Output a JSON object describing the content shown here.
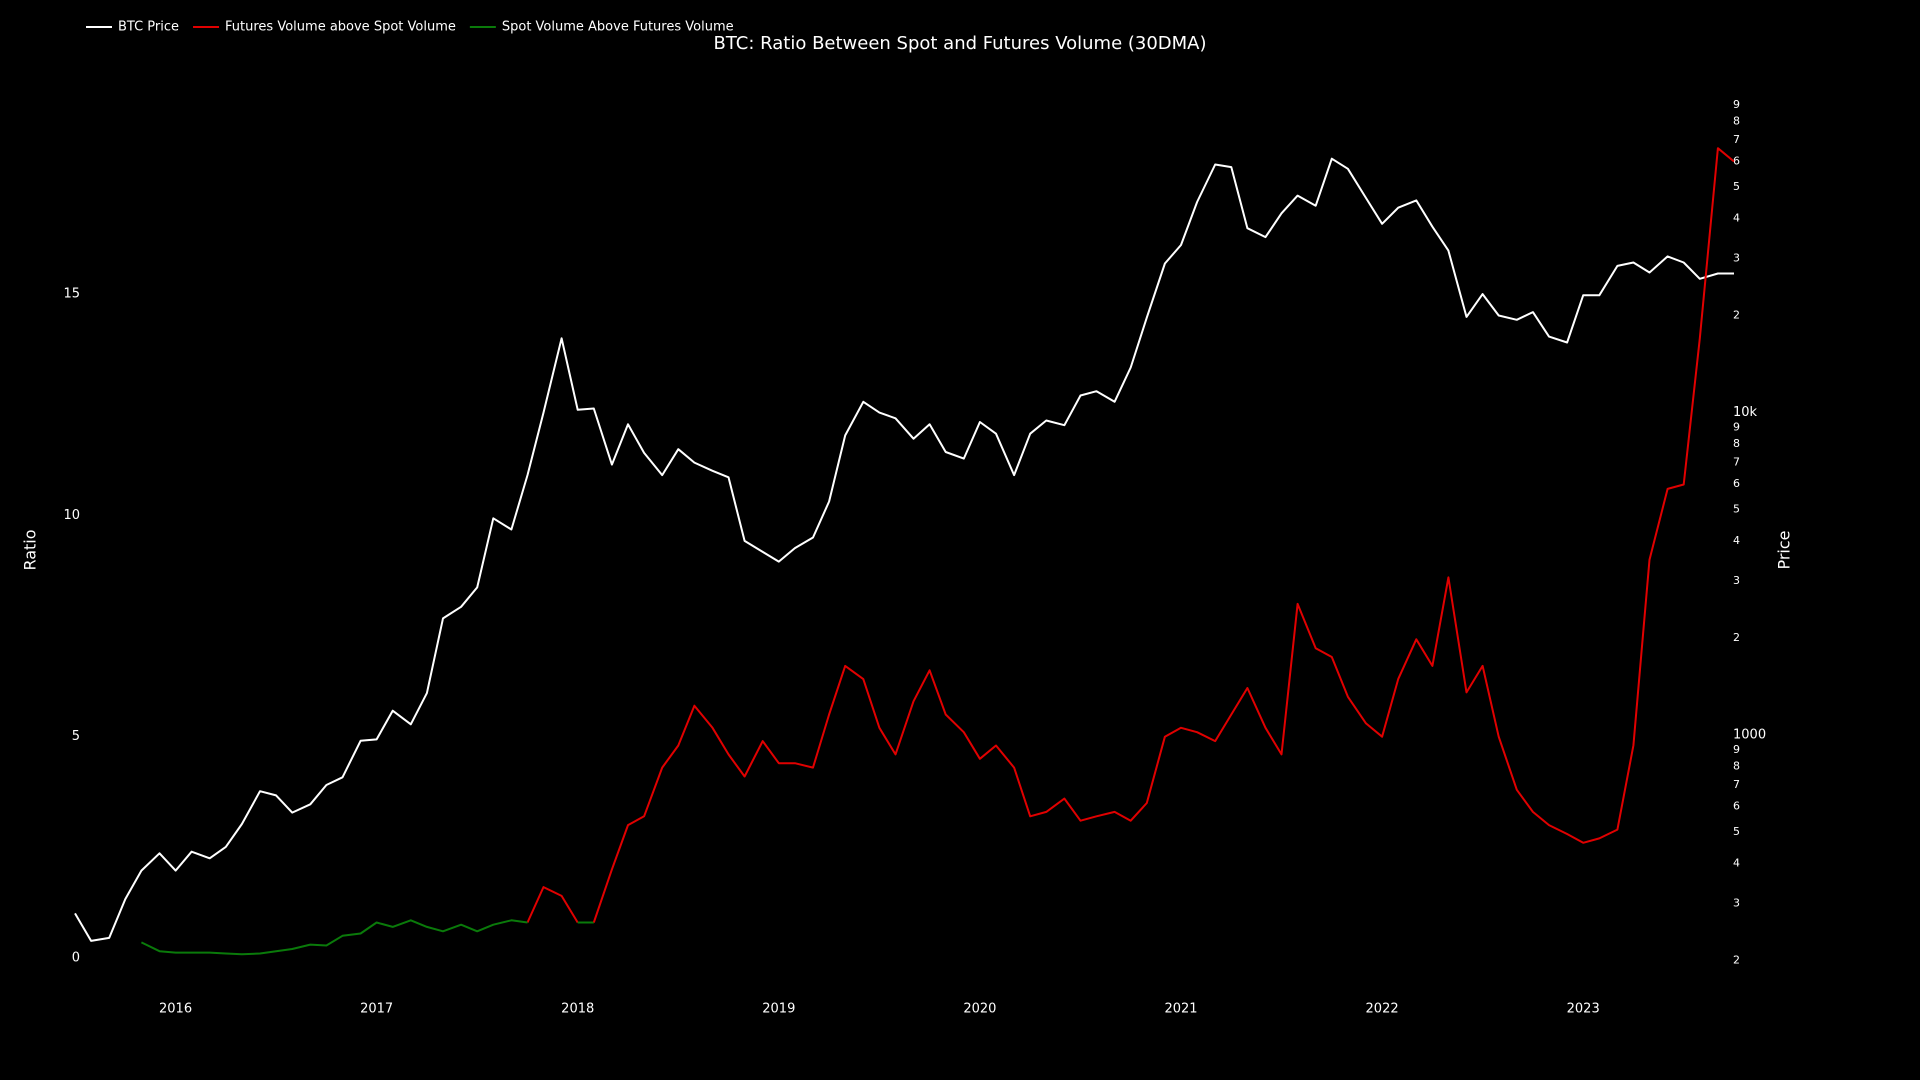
{
  "chart_data": {
    "type": "line",
    "title": "BTC: Ratio Between Spot and Futures Volume (30DMA)",
    "y_label": "Ratio",
    "y2_label": "Price",
    "x": [
      2015.5,
      2015.58,
      2015.67,
      2015.75,
      2015.83,
      2015.92,
      2016.0,
      2016.08,
      2016.17,
      2016.25,
      2016.33,
      2016.42,
      2016.5,
      2016.58,
      2016.67,
      2016.75,
      2016.83,
      2016.92,
      2017.0,
      2017.08,
      2017.17,
      2017.25,
      2017.33,
      2017.42,
      2017.5,
      2017.58,
      2017.67,
      2017.75,
      2017.83,
      2017.92,
      2018.0,
      2018.08,
      2018.17,
      2018.25,
      2018.33,
      2018.42,
      2018.5,
      2018.58,
      2018.67,
      2018.75,
      2018.83,
      2018.92,
      2019.0,
      2019.08,
      2019.17,
      2019.25,
      2019.33,
      2019.42,
      2019.5,
      2019.58,
      2019.67,
      2019.75,
      2019.83,
      2019.92,
      2020.0,
      2020.08,
      2020.17,
      2020.25,
      2020.33,
      2020.42,
      2020.5,
      2020.58,
      2020.67,
      2020.75,
      2020.83,
      2020.92,
      2021.0,
      2021.08,
      2021.17,
      2021.25,
      2021.33,
      2021.42,
      2021.5,
      2021.58,
      2021.67,
      2021.75,
      2021.83,
      2021.92,
      2022.0,
      2022.08,
      2022.17,
      2022.25,
      2022.33,
      2022.42,
      2022.5,
      2022.58,
      2022.67,
      2022.75,
      2022.83,
      2022.92,
      2023.0,
      2023.08,
      2023.17,
      2023.25,
      2023.33,
      2023.42,
      2023.5,
      2023.58,
      2023.67,
      2023.75
    ],
    "series": [
      {
        "name": "BTC Price",
        "color": "#ffffff",
        "axis": "y2",
        "values": [
          280,
          230,
          235,
          310,
          380,
          430,
          380,
          435,
          415,
          450,
          530,
          670,
          650,
          575,
          610,
          700,
          740,
          960,
          970,
          1190,
          1080,
          1350,
          2300,
          2500,
          2870,
          4700,
          4340,
          6400,
          10000,
          17000,
          10200,
          10300,
          6900,
          9200,
          7500,
          6400,
          7700,
          7000,
          6600,
          6300,
          4000,
          3700,
          3450,
          3800,
          4100,
          5300,
          8500,
          10800,
          10000,
          9600,
          8300,
          9200,
          7550,
          7200,
          9350,
          8600,
          6400,
          8600,
          9450,
          9140,
          11300,
          11650,
          10800,
          13800,
          19700,
          29000,
          33100,
          45000,
          58800,
          57700,
          37300,
          35000,
          41500,
          47100,
          43800,
          61300,
          57000,
          46300,
          38500,
          43200,
          45500,
          37700,
          31800,
          19800,
          23300,
          20000,
          19400,
          20500,
          17200,
          16500,
          23100,
          23100,
          28500,
          29200,
          27200,
          30500,
          29200,
          26000,
          27000,
          27000
        ]
      },
      {
        "name": "Futures Volume above Spot Volume",
        "color": "#e00000",
        "values": [
          null,
          null,
          null,
          null,
          null,
          null,
          null,
          null,
          null,
          null,
          null,
          null,
          null,
          null,
          null,
          null,
          null,
          null,
          null,
          null,
          null,
          null,
          null,
          null,
          null,
          null,
          null,
          0.8,
          1.6,
          1.4,
          0.8,
          null,
          null,
          null,
          null,
          null,
          null,
          null,
          null,
          null,
          null,
          null,
          null,
          null,
          null,
          null,
          null,
          null,
          null,
          null,
          null,
          null,
          null,
          null,
          null,
          null,
          null,
          null,
          null,
          null,
          null,
          null,
          null,
          null,
          null,
          null,
          null,
          null,
          null,
          null,
          null,
          null,
          null,
          null,
          null,
          null,
          null,
          null,
          null,
          null,
          null,
          null,
          null,
          null,
          null,
          null,
          null,
          null,
          null,
          null,
          null,
          null,
          null,
          null,
          null,
          null,
          null,
          null,
          null,
          null
        ]
      },
      {
        "name": "Spot Volume Above Futures Volume",
        "color": "#0a7a0a",
        "values": [
          null,
          null,
          null,
          null,
          0.35,
          0.15,
          0.12,
          0.12,
          0.12,
          0.1,
          0.08,
          0.1,
          0.15,
          0.2,
          0.3,
          0.28,
          0.5,
          0.55,
          0.8,
          0.7,
          0.85,
          0.7,
          0.6,
          0.75,
          0.6,
          0.75,
          0.85,
          0.8,
          null,
          null,
          0.8,
          0.8,
          null,
          null,
          null,
          null,
          null,
          null,
          null,
          null,
          null,
          null,
          null,
          null,
          null,
          null,
          null,
          null,
          null,
          null,
          null,
          null,
          null,
          null,
          null,
          null,
          null,
          null,
          null,
          null,
          null,
          null,
          null,
          null,
          null,
          null,
          null,
          null,
          null,
          null,
          null,
          null,
          null,
          null,
          null,
          null,
          null,
          null,
          null,
          null,
          null,
          null,
          null,
          null,
          null,
          null,
          null,
          null,
          null,
          null,
          null,
          null,
          null,
          null,
          null,
          null,
          null,
          null,
          null,
          null
        ]
      }
    ],
    "ratio_futures_continued": [
      null,
      null,
      null,
      null,
      null,
      null,
      null,
      null,
      null,
      null,
      null,
      null,
      null,
      null,
      null,
      null,
      null,
      null,
      null,
      null,
      null,
      null,
      null,
      null,
      null,
      null,
      null,
      null,
      null,
      null,
      null,
      0.8,
      2.0,
      3.0,
      3.2,
      4.3,
      4.8,
      5.7,
      5.2,
      4.6,
      4.1,
      4.9,
      4.4,
      4.4,
      4.3,
      5.5,
      6.6,
      6.3,
      5.2,
      4.6,
      5.8,
      6.5,
      5.5,
      5.1,
      4.5,
      4.8,
      4.3,
      3.2,
      3.3,
      3.6,
      3.1,
      3.2,
      3.3,
      3.1,
      3.5,
      5.0,
      5.2,
      5.1,
      4.9,
      5.5,
      6.1,
      5.2,
      4.6,
      8.0,
      7.0,
      6.8,
      5.9,
      5.3,
      5.0,
      6.3,
      7.2,
      6.6,
      8.6,
      6.0,
      6.6,
      5.0,
      3.8,
      3.3,
      3.0,
      2.8,
      2.6,
      2.7,
      2.9,
      4.8,
      9.0,
      10.6,
      10.7,
      14.0,
      18.3,
      18.0
    ],
    "xlim": [
      2015.49,
      2023.76
    ],
    "xticks": [
      2016,
      2017,
      2018,
      2019,
      2020,
      2021,
      2022,
      2023
    ],
    "ylim": [
      -0.5,
      20
    ],
    "yticks": [
      0,
      5,
      10,
      15
    ],
    "y2lim": [
      174,
      113000
    ],
    "y2_log": true,
    "y2ticks": [
      {
        "value": 200,
        "label": "2"
      },
      {
        "value": 300,
        "label": "3"
      },
      {
        "value": 400,
        "label": "4"
      },
      {
        "value": 500,
        "label": "5"
      },
      {
        "value": 600,
        "label": "6"
      },
      {
        "value": 700,
        "label": "7"
      },
      {
        "value": 800,
        "label": "8"
      },
      {
        "value": 900,
        "label": "9"
      },
      1000,
      {
        "value": 2000,
        "label": "2"
      },
      {
        "value": 3000,
        "label": "3"
      },
      {
        "value": 4000,
        "label": "4"
      },
      {
        "value": 5000,
        "label": "5"
      },
      {
        "value": 6000,
        "label": "6"
      },
      {
        "value": 7000,
        "label": "7"
      },
      {
        "value": 8000,
        "label": "8"
      },
      {
        "value": 9000,
        "label": "9"
      },
      {
        "value": 10000,
        "label": "10k"
      },
      {
        "value": 20000,
        "label": "2"
      },
      {
        "value": 30000,
        "label": "3"
      },
      {
        "value": 40000,
        "label": "4"
      },
      {
        "value": 50000,
        "label": "5"
      },
      {
        "value": 60000,
        "label": "6"
      },
      {
        "value": 70000,
        "label": "7"
      },
      {
        "value": 80000,
        "label": "8"
      },
      {
        "value": 90000,
        "label": "9"
      }
    ],
    "grid": false,
    "legend": "top-left"
  }
}
